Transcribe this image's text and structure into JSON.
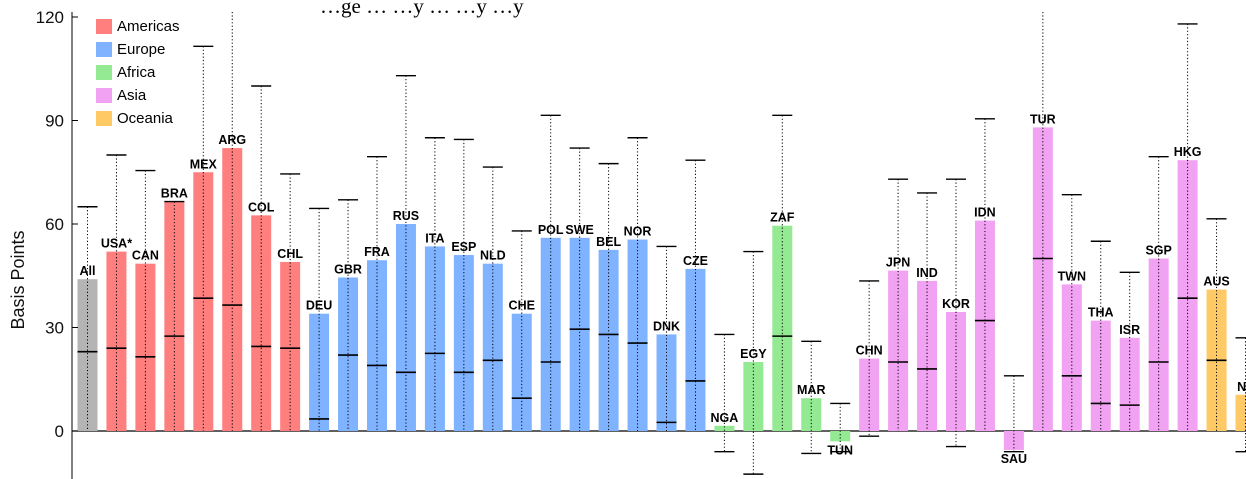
{
  "chart_data": {
    "type": "bar",
    "title": "…ge … …y … …y …y",
    "ylabel": "Basis Points",
    "xlabel": "",
    "ylim": [
      -6,
      120
    ],
    "yticks": [
      0,
      30,
      60,
      90,
      120
    ],
    "grid": false,
    "legend_position": "top-left",
    "legend": [
      {
        "name": "Americas",
        "color": "#ff7f7f"
      },
      {
        "name": "Europe",
        "color": "#80b3ff"
      },
      {
        "name": "Africa",
        "color": "#93ea93"
      },
      {
        "name": "Asia",
        "color": "#f2a2f2"
      },
      {
        "name": "Oceania",
        "color": "#ffca66"
      }
    ],
    "series_colors": {
      "All": "#b4b4b4",
      "Americas": "#ff7f7f",
      "Europe": "#80b3ff",
      "Africa": "#93ea93",
      "Asia": "#f2a2f2",
      "Oceania": "#ffca66"
    },
    "bars": [
      {
        "label": "All",
        "region": "All",
        "value": 44,
        "median": 23,
        "whisker_low": 0,
        "whisker_high": 65
      },
      {
        "label": "USA*",
        "region": "Americas",
        "value": 52,
        "median": 24,
        "whisker_low": 0,
        "whisker_high": 80
      },
      {
        "label": "CAN",
        "region": "Americas",
        "value": 48.5,
        "median": 21.5,
        "whisker_low": 0,
        "whisker_high": 75.5
      },
      {
        "label": "BRA",
        "region": "Americas",
        "value": 66.5,
        "median": 27.5,
        "whisker_low": 0,
        "whisker_high": 66.5
      },
      {
        "label": "MEX",
        "region": "Americas",
        "value": 75,
        "median": 38.5,
        "whisker_low": 0,
        "whisker_high": 111.5
      },
      {
        "label": "ARG",
        "region": "Americas",
        "value": 82,
        "median": 36.5,
        "whisker_low": 0,
        "whisker_high": 123
      },
      {
        "label": "COL",
        "region": "Americas",
        "value": 62.5,
        "median": 24.5,
        "whisker_low": 0,
        "whisker_high": 100
      },
      {
        "label": "CHL",
        "region": "Americas",
        "value": 49,
        "median": 24,
        "whisker_low": 0,
        "whisker_high": 74.5
      },
      {
        "label": "DEU",
        "region": "Europe",
        "value": 34,
        "median": 3.5,
        "whisker_low": 0,
        "whisker_high": 64.5
      },
      {
        "label": "GBR",
        "region": "Europe",
        "value": 44.5,
        "median": 22,
        "whisker_low": 0,
        "whisker_high": 67
      },
      {
        "label": "FRA",
        "region": "Europe",
        "value": 49.5,
        "median": 19,
        "whisker_low": 0,
        "whisker_high": 79.5
      },
      {
        "label": "RUS",
        "region": "Europe",
        "value": 60,
        "median": 17,
        "whisker_low": 0,
        "whisker_high": 103
      },
      {
        "label": "ITA",
        "region": "Europe",
        "value": 53.5,
        "median": 22.5,
        "whisker_low": 0,
        "whisker_high": 85
      },
      {
        "label": "ESP",
        "region": "Europe",
        "value": 51,
        "median": 17,
        "whisker_low": 0,
        "whisker_high": 84.5
      },
      {
        "label": "NLD",
        "region": "Europe",
        "value": 48.5,
        "median": 20.5,
        "whisker_low": 0,
        "whisker_high": 76.5
      },
      {
        "label": "CHE",
        "region": "Europe",
        "value": 34,
        "median": 9.5,
        "whisker_low": 0,
        "whisker_high": 58
      },
      {
        "label": "POL",
        "region": "Europe",
        "value": 56,
        "median": 20,
        "whisker_low": 0,
        "whisker_high": 91.5
      },
      {
        "label": "SWE",
        "region": "Europe",
        "value": 56,
        "median": 29.5,
        "whisker_low": 0,
        "whisker_high": 82
      },
      {
        "label": "BEL",
        "region": "Europe",
        "value": 52.5,
        "median": 28,
        "whisker_low": 0,
        "whisker_high": 77.5
      },
      {
        "label": "NOR",
        "region": "Europe",
        "value": 55.5,
        "median": 25.5,
        "whisker_low": 0,
        "whisker_high": 85
      },
      {
        "label": "DNK",
        "region": "Europe",
        "value": 28,
        "median": 2.5,
        "whisker_low": 0,
        "whisker_high": 53.5
      },
      {
        "label": "CZE",
        "region": "Europe",
        "value": 47,
        "median": 14.5,
        "whisker_low": 0,
        "whisker_high": 78.5
      },
      {
        "label": "NGA",
        "region": "Africa",
        "value": 1.5,
        "median": null,
        "whisker_low": -6,
        "whisker_high": 28
      },
      {
        "label": "EGY",
        "region": "Africa",
        "value": 20,
        "median": null,
        "whisker_low": -12.5,
        "whisker_high": 52
      },
      {
        "label": "ZAF",
        "region": "Africa",
        "value": 59.5,
        "median": 27.5,
        "whisker_low": 0,
        "whisker_high": 91.5
      },
      {
        "label": "MAR",
        "region": "Africa",
        "value": 9.5,
        "median": null,
        "whisker_low": -6.5,
        "whisker_high": 26
      },
      {
        "label": "TUN",
        "region": "Africa",
        "value": -3,
        "median": null,
        "whisker_low": -6,
        "whisker_high": 8
      },
      {
        "label": "CHN",
        "region": "Asia",
        "value": 21,
        "median": null,
        "whisker_low": -1.5,
        "whisker_high": 43.5
      },
      {
        "label": "JPN",
        "region": "Asia",
        "value": 46.5,
        "median": 20,
        "whisker_low": 0,
        "whisker_high": 73
      },
      {
        "label": "IND",
        "region": "Asia",
        "value": 43.5,
        "median": 18,
        "whisker_low": 0,
        "whisker_high": 69
      },
      {
        "label": "KOR",
        "region": "Asia",
        "value": 34.5,
        "median": null,
        "whisker_low": -4.5,
        "whisker_high": 73
      },
      {
        "label": "IDN",
        "region": "Asia",
        "value": 61,
        "median": 32,
        "whisker_low": 0,
        "whisker_high": 90.5
      },
      {
        "label": "SAU",
        "region": "Asia",
        "value": -5.5,
        "median": null,
        "whisker_low": -6,
        "whisker_high": 16
      },
      {
        "label": "TUR",
        "region": "Asia",
        "value": 88,
        "median": 50,
        "whisker_low": 0,
        "whisker_high": 122
      },
      {
        "label": "TWN",
        "region": "Asia",
        "value": 42.5,
        "median": 16,
        "whisker_low": 0,
        "whisker_high": 68.5
      },
      {
        "label": "THA",
        "region": "Asia",
        "value": 32,
        "median": 8,
        "whisker_low": 0,
        "whisker_high": 55
      },
      {
        "label": "ISR",
        "region": "Asia",
        "value": 27,
        "median": 7.5,
        "whisker_low": 0,
        "whisker_high": 46
      },
      {
        "label": "SGP",
        "region": "Asia",
        "value": 50,
        "median": 20,
        "whisker_low": 0,
        "whisker_high": 79.5
      },
      {
        "label": "HKG",
        "region": "Asia",
        "value": 78.5,
        "median": 38.5,
        "whisker_low": 0,
        "whisker_high": 118
      },
      {
        "label": "AUS",
        "region": "Oceania",
        "value": 41,
        "median": 20.5,
        "whisker_low": 0,
        "whisker_high": 61.5
      },
      {
        "label": "NZ",
        "region": "Oceania",
        "value": 10.5,
        "median": null,
        "whisker_low": -6,
        "whisker_high": 27
      }
    ]
  }
}
